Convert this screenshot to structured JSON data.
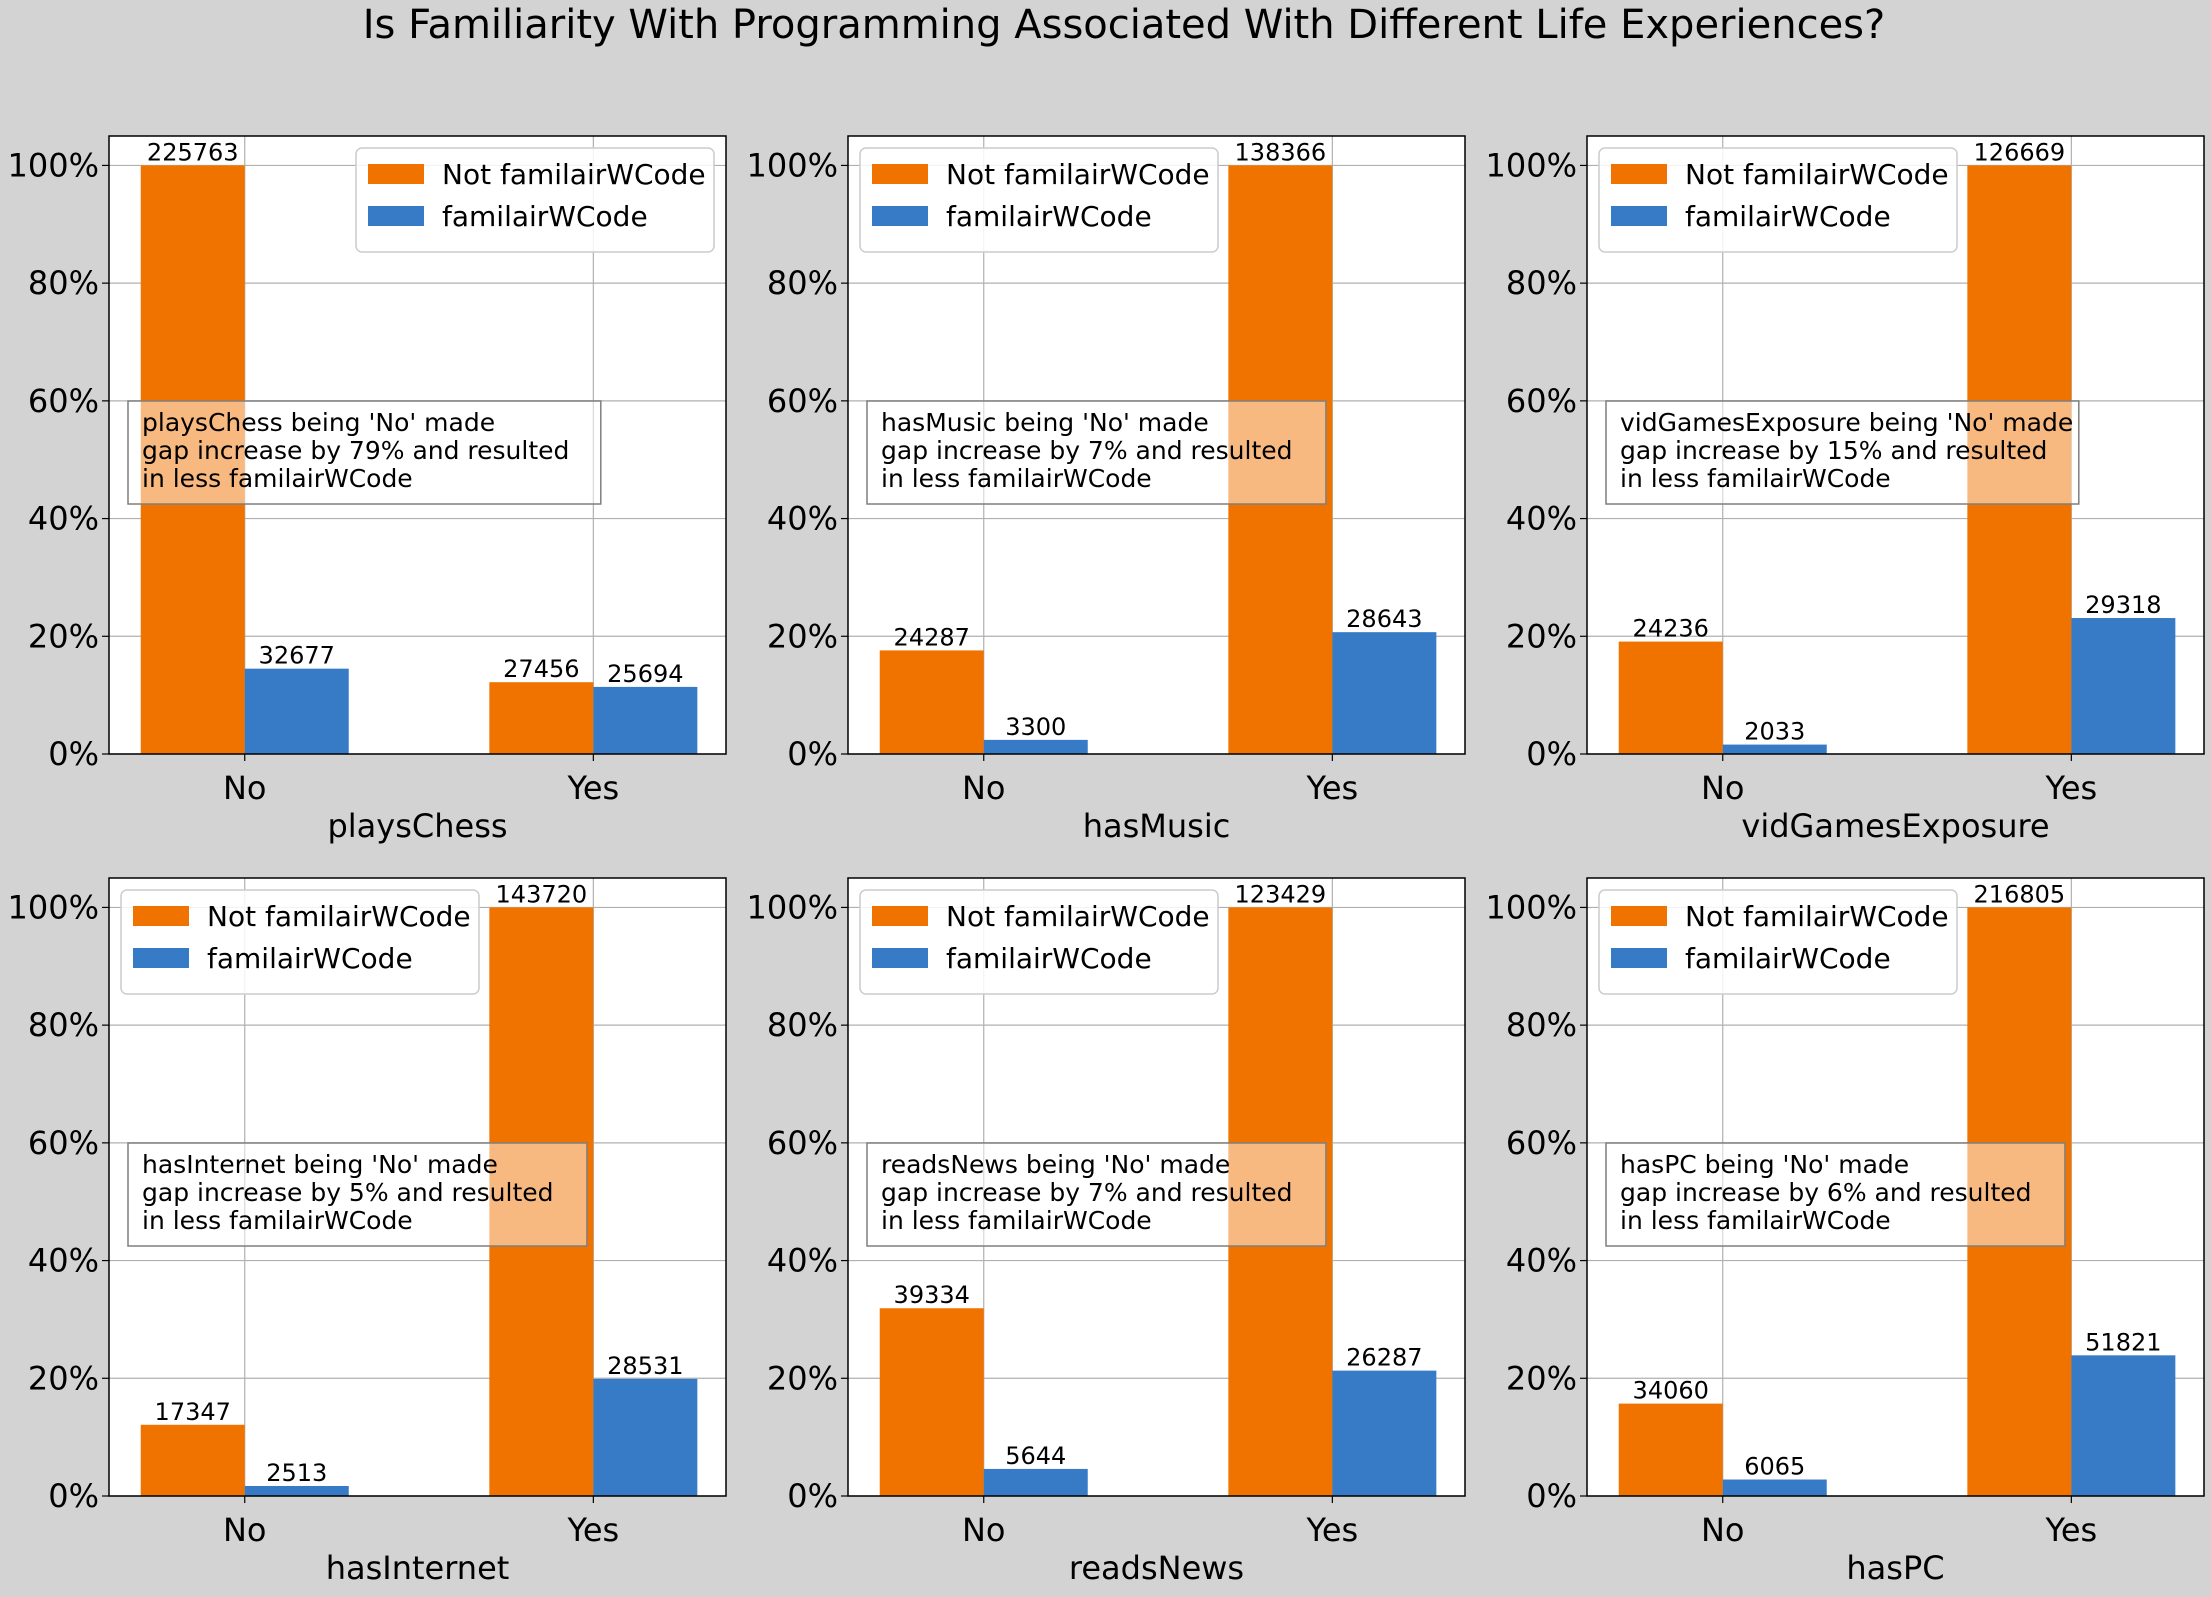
{
  "title": "Is Familiarity With Programming Associated With Different Life Experiences?",
  "colors": {
    "not_familiar": "#f07300",
    "familiar": "#377bc6"
  },
  "legend": [
    "Not familairWCode",
    "familairWCode"
  ],
  "chart_data": [
    {
      "type": "bar",
      "xlabel": "playsChess",
      "categories": [
        "No",
        "Yes"
      ],
      "ylim": [
        0,
        105
      ],
      "yticks": [
        "0%",
        "20%",
        "40%",
        "60%",
        "80%",
        "100%"
      ],
      "grid": true,
      "legend_loc": "top-right",
      "series": [
        {
          "name": "Not familairWCode",
          "values": [
            100,
            12.2
          ],
          "labels": [
            "225763",
            "27456"
          ]
        },
        {
          "name": "familairWCode",
          "values": [
            14.5,
            11.4
          ],
          "labels": [
            "32677",
            "25694"
          ]
        }
      ],
      "annotation": [
        "playsChess being 'No' made",
        "gap increase by 79% and resulted",
        "in less familairWCode"
      ]
    },
    {
      "type": "bar",
      "xlabel": "hasMusic",
      "categories": [
        "No",
        "Yes"
      ],
      "ylim": [
        0,
        105
      ],
      "yticks": [
        "0%",
        "20%",
        "40%",
        "60%",
        "80%",
        "100%"
      ],
      "grid": true,
      "legend_loc": "top-left",
      "series": [
        {
          "name": "Not familairWCode",
          "values": [
            17.6,
            100
          ],
          "labels": [
            "24287",
            "138366"
          ]
        },
        {
          "name": "familairWCode",
          "values": [
            2.4,
            20.7
          ],
          "labels": [
            "3300",
            "28643"
          ]
        }
      ],
      "annotation": [
        "hasMusic being 'No' made",
        "gap increase by 7% and resulted",
        "in less familairWCode"
      ]
    },
    {
      "type": "bar",
      "xlabel": "vidGamesExposure",
      "categories": [
        "No",
        "Yes"
      ],
      "ylim": [
        0,
        105
      ],
      "yticks": [
        "0%",
        "20%",
        "40%",
        "60%",
        "80%",
        "100%"
      ],
      "grid": true,
      "legend_loc": "top-left",
      "series": [
        {
          "name": "Not familairWCode",
          "values": [
            19.1,
            100
          ],
          "labels": [
            "24236",
            "126669"
          ]
        },
        {
          "name": "familairWCode",
          "values": [
            1.6,
            23.1
          ],
          "labels": [
            "2033",
            "29318"
          ]
        }
      ],
      "annotation": [
        "vidGamesExposure being 'No' made",
        "gap increase by 15% and resulted",
        "in less familairWCode"
      ]
    },
    {
      "type": "bar",
      "xlabel": "hasInternet",
      "categories": [
        "No",
        "Yes"
      ],
      "ylim": [
        0,
        105
      ],
      "yticks": [
        "0%",
        "20%",
        "40%",
        "60%",
        "80%",
        "100%"
      ],
      "grid": true,
      "legend_loc": "top-left",
      "series": [
        {
          "name": "Not familairWCode",
          "values": [
            12.1,
            100
          ],
          "labels": [
            "17347",
            "143720"
          ]
        },
        {
          "name": "familairWCode",
          "values": [
            1.7,
            19.9
          ],
          "labels": [
            "2513",
            "28531"
          ]
        }
      ],
      "annotation": [
        "hasInternet being 'No' made",
        "gap increase by 5% and resulted",
        "in less familairWCode"
      ]
    },
    {
      "type": "bar",
      "xlabel": "readsNews",
      "categories": [
        "No",
        "Yes"
      ],
      "ylim": [
        0,
        105
      ],
      "yticks": [
        "0%",
        "20%",
        "40%",
        "60%",
        "80%",
        "100%"
      ],
      "grid": true,
      "legend_loc": "top-left",
      "series": [
        {
          "name": "Not familairWCode",
          "values": [
            31.9,
            100
          ],
          "labels": [
            "39334",
            "123429"
          ]
        },
        {
          "name": "familairWCode",
          "values": [
            4.6,
            21.3
          ],
          "labels": [
            "5644",
            "26287"
          ]
        }
      ],
      "annotation": [
        "readsNews being 'No' made",
        "gap increase by 7% and resulted",
        "in less familairWCode"
      ]
    },
    {
      "type": "bar",
      "xlabel": "hasPC",
      "categories": [
        "No",
        "Yes"
      ],
      "ylim": [
        0,
        105
      ],
      "yticks": [
        "0%",
        "20%",
        "40%",
        "60%",
        "80%",
        "100%"
      ],
      "grid": true,
      "legend_loc": "top-left",
      "series": [
        {
          "name": "Not familairWCode",
          "values": [
            15.7,
            100
          ],
          "labels": [
            "34060",
            "216805"
          ]
        },
        {
          "name": "familairWCode",
          "values": [
            2.8,
            23.9
          ],
          "labels": [
            "6065",
            "51821"
          ]
        }
      ],
      "annotation": [
        "hasPC being 'No' made",
        "gap increase by 6% and resulted",
        "in less familairWCode"
      ]
    }
  ]
}
